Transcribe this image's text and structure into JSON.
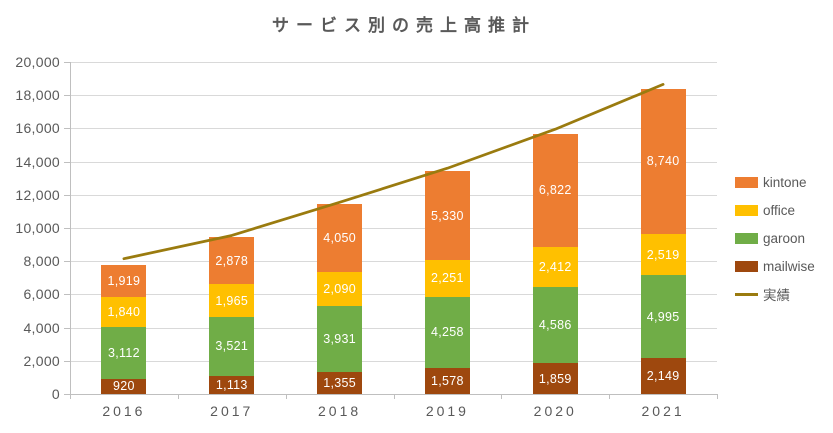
{
  "title": "サービス別の売上高推計",
  "chart_data": {
    "type": "bar",
    "subtype": "stacked-column-with-line",
    "categories": [
      "2016",
      "2017",
      "2018",
      "2019",
      "2020",
      "2021"
    ],
    "series": [
      {
        "name": "kintone",
        "color": "#ED7D31",
        "values": [
          1919,
          2878,
          4050,
          5330,
          6822,
          8740
        ]
      },
      {
        "name": "office",
        "color": "#FFC000",
        "values": [
          1840,
          1965,
          2090,
          2251,
          2412,
          2519
        ]
      },
      {
        "name": "garoon",
        "color": "#70AD47",
        "values": [
          3112,
          3521,
          3931,
          4258,
          4586,
          4995
        ]
      },
      {
        "name": "mailwise",
        "color": "#9E480E",
        "values": [
          920,
          1113,
          1355,
          1578,
          1859,
          2149
        ]
      }
    ],
    "stack_order_bottom_to_top": [
      "mailwise",
      "garoon",
      "office",
      "kintone"
    ],
    "line_series": {
      "name": "実績",
      "color": "#9A7B0F",
      "values": [
        8150,
        9550,
        11550,
        13600,
        15950,
        18650
      ],
      "note": "line values estimated from pixels; no data labels shown"
    },
    "data_labels": {
      "shown_on_bars": true,
      "color": "#FFFFFF",
      "format": "thousands-comma"
    },
    "title": "サービス別の売上高推計",
    "xlabel": "",
    "ylabel": "",
    "ylim": [
      0,
      20000
    ],
    "ytick_step": 2000,
    "ytick_labels": [
      "0",
      "2,000",
      "4,000",
      "6,000",
      "8,000",
      "10,000",
      "12,000",
      "14,000",
      "16,000",
      "18,000",
      "20,000"
    ],
    "grid": true,
    "legend_position": "right",
    "legend_entries": [
      "kintone",
      "office",
      "garoon",
      "mailwise",
      "実績"
    ]
  },
  "style": {
    "text_color": "#595959",
    "gridline_color": "#D9D9D9",
    "axis_color": "#BFBFBF",
    "background": "#FFFFFF"
  }
}
